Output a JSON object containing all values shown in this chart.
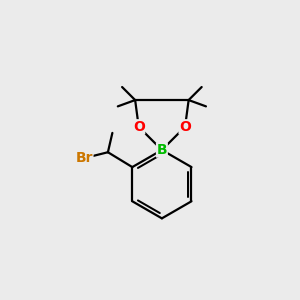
{
  "background_color": "#ebebeb",
  "bond_color": "#000000",
  "bond_width": 1.6,
  "atom_colors": {
    "B": "#00bb00",
    "O": "#ff0000",
    "Br": "#cc7700"
  },
  "font_size_atom": 10,
  "fig_bg": "#ebebeb"
}
